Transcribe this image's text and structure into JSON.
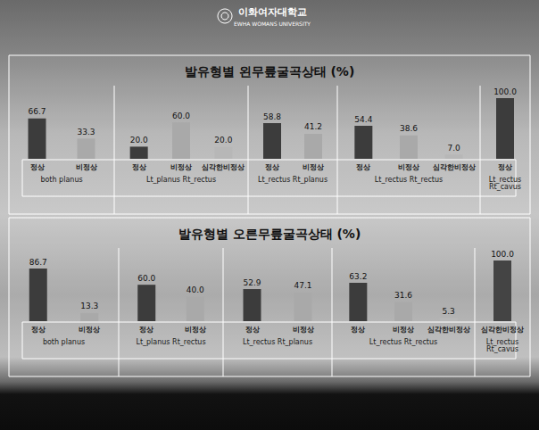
{
  "header": {
    "title": "이화여자대학교",
    "subtitle": "EWHA WOMANS UNIVERSITY"
  },
  "chart_data": [
    {
      "type": "bar",
      "title": "발유형별 왼무릎굴곡상태 (%)",
      "ylim": [
        0,
        100
      ],
      "data_labels": true,
      "tick_labels": "x",
      "groups": [
        {
          "name": "both planus",
          "categories": [
            "정상",
            "비정상"
          ],
          "values": [
            66.7,
            33.3
          ],
          "value_labels": [
            "66.7",
            "33.3"
          ],
          "colors": [
            "#3c3c3c",
            "#a9a9a9"
          ]
        },
        {
          "name": "Lt_planus Rt_rectus",
          "categories": [
            "정상",
            "비정상",
            "심각한비정상"
          ],
          "values": [
            20.0,
            60.0,
            20.0
          ],
          "value_labels": [
            "20.0",
            "60.0",
            "20.0"
          ],
          "colors": [
            "#3c3c3c",
            "#a9a9a9",
            "#b7b7b7"
          ]
        },
        {
          "name": "Lt_rectus Rt_planus",
          "categories": [
            "정상",
            "비정상"
          ],
          "values": [
            58.8,
            41.2
          ],
          "value_labels": [
            "58.8",
            "41.2"
          ],
          "colors": [
            "#3c3c3c",
            "#a9a9a9"
          ]
        },
        {
          "name": "Lt_rectus Rt_rectus",
          "categories": [
            "정상",
            "비정상",
            "심각한비정상"
          ],
          "values": [
            54.4,
            38.6,
            7.0
          ],
          "value_labels": [
            "54.4",
            "38.6",
            "7.0"
          ],
          "colors": [
            "#3c3c3c",
            "#a9a9a9",
            "#b7b7b7"
          ]
        },
        {
          "name": "Lt_rectus Rt_cavus",
          "categories": [
            "정상"
          ],
          "values": [
            100.0
          ],
          "value_labels": [
            "100.0"
          ],
          "colors": [
            "#3c3c3c"
          ]
        }
      ]
    },
    {
      "type": "bar",
      "title": "발유형별 오른무릎굴곡상태 (%)",
      "ylim": [
        0,
        100
      ],
      "data_labels": true,
      "tick_labels": "x",
      "groups": [
        {
          "name": "both planus",
          "categories": [
            "정상",
            "비정상"
          ],
          "values": [
            86.7,
            13.3
          ],
          "value_labels": [
            "86.7",
            "13.3"
          ],
          "colors": [
            "#3c3c3c",
            "#a9a9a9"
          ]
        },
        {
          "name": "Lt_planus Rt_rectus",
          "categories": [
            "정상",
            "비정상"
          ],
          "values": [
            60.0,
            40.0
          ],
          "value_labels": [
            "60.0",
            "40.0"
          ],
          "colors": [
            "#3c3c3c",
            "#a9a9a9"
          ]
        },
        {
          "name": "Lt_rectus Rt_planus",
          "categories": [
            "정상",
            "비정상"
          ],
          "values": [
            52.9,
            47.1
          ],
          "value_labels": [
            "52.9",
            "47.1"
          ],
          "colors": [
            "#3c3c3c",
            "#a9a9a9"
          ]
        },
        {
          "name": "Lt_rectus Rt_rectus",
          "categories": [
            "정상",
            "비정상",
            "심각한비정상"
          ],
          "values": [
            63.2,
            31.6,
            5.3
          ],
          "value_labels": [
            "63.2",
            "31.6",
            "5.3"
          ],
          "colors": [
            "#3c3c3c",
            "#a9a9a9",
            "#b7b7b7"
          ]
        },
        {
          "name": "Lt_rectus Rt_cavus",
          "categories": [
            "심각한비정상"
          ],
          "values": [
            100.0
          ],
          "value_labels": [
            "100.0"
          ],
          "colors": [
            "#444444"
          ]
        }
      ]
    }
  ]
}
